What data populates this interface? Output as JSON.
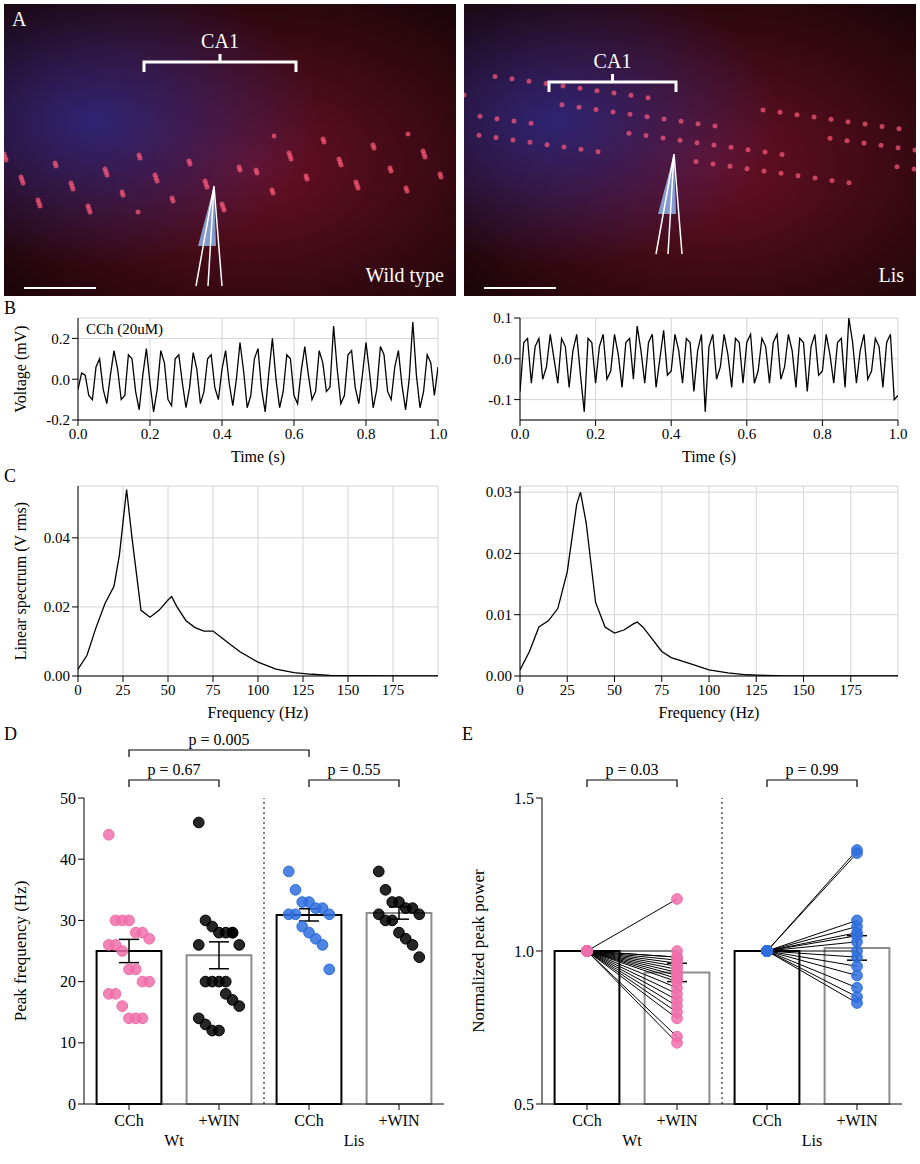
{
  "panel_labels": [
    "A",
    "B",
    "C",
    "D",
    "E"
  ],
  "images": [
    {
      "region": "CA1",
      "label": "Wild type"
    },
    {
      "region": "CA1",
      "label": "Lis"
    }
  ],
  "chart_data": [
    {
      "type": "line",
      "x": [
        0,
        0.01,
        0.02,
        0.03,
        0.04,
        0.05,
        0.06,
        0.07,
        0.08,
        0.09,
        0.1,
        0.11,
        0.12,
        0.13,
        0.14,
        0.15,
        0.16,
        0.17,
        0.18,
        0.19,
        0.2,
        0.21,
        0.22,
        0.23,
        0.24,
        0.25,
        0.26,
        0.27,
        0.28,
        0.29,
        0.3,
        0.31,
        0.32,
        0.33,
        0.34,
        0.35,
        0.36,
        0.37,
        0.38,
        0.39,
        0.4,
        0.41,
        0.42,
        0.43,
        0.44,
        0.45,
        0.46,
        0.47,
        0.48,
        0.49,
        0.5,
        0.51,
        0.52,
        0.53,
        0.54,
        0.55,
        0.56,
        0.57,
        0.58,
        0.59,
        0.6,
        0.61,
        0.62,
        0.63,
        0.64,
        0.65,
        0.66,
        0.67,
        0.68,
        0.69,
        0.7,
        0.71,
        0.72,
        0.73,
        0.74,
        0.75,
        0.76,
        0.77,
        0.78,
        0.79,
        0.8,
        0.81,
        0.82,
        0.83,
        0.84,
        0.85,
        0.86,
        0.87,
        0.88,
        0.89,
        0.9,
        0.91,
        0.92,
        0.93,
        0.94,
        0.95,
        0.96,
        0.97,
        0.98,
        0.99,
        1
      ],
      "values": [
        -0.05,
        0.03,
        0.02,
        -0.08,
        -0.1,
        0.06,
        0.1,
        -0.05,
        -0.12,
        0.02,
        0.14,
        0.05,
        -0.1,
        -0.08,
        0.12,
        0.1,
        -0.06,
        -0.15,
        0.02,
        0.15,
        -0.02,
        -0.16,
        -0.05,
        0.14,
        0.08,
        -0.1,
        -0.13,
        0.1,
        0.12,
        -0.02,
        -0.14,
        -0.04,
        0.13,
        0.05,
        -0.12,
        -0.06,
        0.1,
        0.12,
        -0.04,
        -0.1,
        0.05,
        0.14,
        -0.02,
        -0.13,
        0.0,
        0.18,
        0.04,
        -0.14,
        -0.08,
        0.1,
        0.15,
        -0.05,
        -0.16,
        0.03,
        0.2,
        0.0,
        -0.14,
        -0.06,
        0.12,
        0.1,
        -0.08,
        -0.12,
        0.04,
        0.16,
        0.02,
        -0.1,
        -0.06,
        0.14,
        0.08,
        -0.06,
        -0.04,
        0.26,
        0.05,
        -0.12,
        -0.08,
        0.12,
        0.14,
        -0.04,
        -0.12,
        0.02,
        0.18,
        0.03,
        -0.14,
        -0.05,
        0.16,
        0.12,
        -0.06,
        -0.1,
        0.06,
        0.14,
        -0.03,
        -0.15,
        0.0,
        0.28,
        0.02,
        -0.14,
        -0.06,
        0.12,
        0.08,
        -0.08,
        0.06
      ],
      "color": "#000000",
      "xlim": [
        0,
        1
      ],
      "xticks": [
        {
          "value": 0,
          "label": "0.0"
        },
        0.2,
        0.4,
        0.6,
        0.8,
        {
          "value": 1,
          "label": "1.0"
        }
      ],
      "ylim": [
        -0.2,
        0.3
      ],
      "yticks": [
        -0.2,
        {
          "value": 0,
          "label": "0.0"
        },
        0.2
      ],
      "xlabel": "Time (s)",
      "ylabel": "Voltage (mV)",
      "annotations": [
        "CCh (20uM)"
      ],
      "grid": true
    },
    {
      "type": "line",
      "x": [
        0,
        0.01,
        0.02,
        0.03,
        0.04,
        0.05,
        0.06,
        0.07,
        0.08,
        0.09,
        0.1,
        0.11,
        0.12,
        0.13,
        0.14,
        0.15,
        0.16,
        0.17,
        0.18,
        0.19,
        0.2,
        0.21,
        0.22,
        0.23,
        0.24,
        0.25,
        0.26,
        0.27,
        0.28,
        0.29,
        0.3,
        0.31,
        0.32,
        0.33,
        0.34,
        0.35,
        0.36,
        0.37,
        0.38,
        0.39,
        0.4,
        0.41,
        0.42,
        0.43,
        0.44,
        0.45,
        0.46,
        0.47,
        0.48,
        0.49,
        0.5,
        0.51,
        0.52,
        0.53,
        0.54,
        0.55,
        0.56,
        0.57,
        0.58,
        0.59,
        0.6,
        0.61,
        0.62,
        0.63,
        0.64,
        0.65,
        0.66,
        0.67,
        0.68,
        0.69,
        0.7,
        0.71,
        0.72,
        0.73,
        0.74,
        0.75,
        0.76,
        0.77,
        0.78,
        0.79,
        0.8,
        0.81,
        0.82,
        0.83,
        0.84,
        0.85,
        0.86,
        0.87,
        0.88,
        0.89,
        0.9,
        0.91,
        0.92,
        0.93,
        0.94,
        0.95,
        0.96,
        0.97,
        0.98,
        0.99,
        1
      ],
      "values": [
        -0.08,
        0.04,
        0.05,
        -0.06,
        0.03,
        0.05,
        -0.05,
        -0.02,
        0.06,
        0.0,
        -0.06,
        0.05,
        0.03,
        -0.07,
        0.02,
        0.06,
        -0.04,
        -0.13,
        0.05,
        0.04,
        -0.06,
        0.03,
        0.06,
        -0.05,
        -0.03,
        0.06,
        0.01,
        -0.07,
        0.04,
        0.05,
        -0.05,
        0.08,
        0.02,
        -0.06,
        0.04,
        0.06,
        -0.07,
        0.0,
        0.07,
        -0.04,
        -0.03,
        0.06,
        0.02,
        -0.06,
        0.05,
        0.04,
        -0.08,
        0.02,
        0.06,
        -0.13,
        0.03,
        0.06,
        -0.05,
        -0.02,
        0.06,
        0.01,
        -0.07,
        0.05,
        0.04,
        -0.06,
        0.04,
        0.06,
        -0.06,
        -0.03,
        0.05,
        0.03,
        -0.06,
        0.04,
        0.06,
        -0.05,
        -0.02,
        0.06,
        0.02,
        -0.07,
        0.05,
        0.04,
        -0.08,
        0.03,
        0.06,
        -0.04,
        -0.03,
        0.06,
        0.01,
        -0.06,
        0.04,
        0.05,
        -0.07,
        0.1,
        0.04,
        -0.06,
        0.02,
        0.06,
        -0.05,
        -0.03,
        0.05,
        0.03,
        -0.07,
        0.04,
        0.06,
        -0.1,
        -0.09
      ],
      "color": "#000000",
      "xlim": [
        0,
        1
      ],
      "xticks": [
        {
          "value": 0,
          "label": "0.0"
        },
        0.2,
        0.4,
        0.6,
        0.8,
        {
          "value": 1,
          "label": "1.0"
        }
      ],
      "ylim": [
        -0.15,
        0.1
      ],
      "yticks": [
        -0.1,
        {
          "value": 0,
          "label": "0.0"
        },
        0.1
      ],
      "xlabel": "Time (s)",
      "grid": true
    },
    {
      "type": "line",
      "x": [
        0,
        5,
        10,
        15,
        20,
        23,
        27,
        30,
        35,
        40,
        45,
        50,
        52,
        55,
        60,
        65,
        70,
        75,
        80,
        85,
        90,
        100,
        110,
        120,
        130,
        140,
        150,
        175,
        200
      ],
      "values": [
        0.002,
        0.006,
        0.014,
        0.021,
        0.026,
        0.035,
        0.054,
        0.04,
        0.019,
        0.017,
        0.019,
        0.022,
        0.023,
        0.02,
        0.016,
        0.014,
        0.013,
        0.013,
        0.011,
        0.009,
        0.007,
        0.004,
        0.002,
        0.001,
        0.0005,
        0.0002,
        0.0001,
        0,
        0
      ],
      "color": "#000000",
      "xlim": [
        0,
        200
      ],
      "xticks": [
        0,
        25,
        50,
        75,
        100,
        125,
        150,
        175
      ],
      "ylim": [
        0,
        0.055
      ],
      "yticks": [
        {
          "value": 0,
          "label": "0.00"
        },
        0.02,
        0.04
      ],
      "xlabel": "Frequency (Hz)",
      "ylabel": "Linear spectrum (V rms)",
      "grid": true
    },
    {
      "type": "line",
      "x": [
        0,
        5,
        10,
        15,
        20,
        25,
        30,
        32,
        35,
        40,
        45,
        50,
        55,
        60,
        62,
        65,
        70,
        75,
        80,
        85,
        90,
        100,
        110,
        120,
        130,
        140,
        150,
        175,
        200
      ],
      "values": [
        0.001,
        0.004,
        0.008,
        0.009,
        0.011,
        0.017,
        0.028,
        0.03,
        0.025,
        0.012,
        0.008,
        0.007,
        0.0075,
        0.0085,
        0.0088,
        0.008,
        0.006,
        0.004,
        0.003,
        0.0025,
        0.002,
        0.001,
        0.0005,
        0.0002,
        0.0001,
        0,
        0,
        0,
        0
      ],
      "color": "#000000",
      "xlim": [
        0,
        200
      ],
      "xticks": [
        0,
        25,
        50,
        75,
        100,
        125,
        150,
        175
      ],
      "ylim": [
        0,
        0.031
      ],
      "yticks": [
        {
          "value": 0,
          "label": "0.00"
        },
        0.01,
        0.02,
        0.03
      ],
      "xlabel": "Frequency (Hz)",
      "grid": true
    },
    {
      "type": "bar",
      "categories": [
        "CCh",
        "+WIN",
        "CCh",
        "+WIN"
      ],
      "groups": [
        "Wt",
        "Lis"
      ],
      "values": [
        25.0,
        24.3,
        30.9,
        31.2
      ],
      "errors": [
        1.9,
        2.2,
        1.0,
        1.0
      ],
      "colors": [
        "#000000",
        "#8c8c8c",
        "#000000",
        "#8c8c8c"
      ],
      "points": [
        {
          "color": "#f06eaa",
          "values": [
            44,
            30,
            30,
            30,
            28,
            28,
            27,
            26,
            26,
            25,
            22,
            22,
            20,
            20,
            18,
            18,
            16,
            14,
            14,
            14
          ]
        },
        {
          "color": "#000000",
          "values": [
            46,
            30,
            29,
            28,
            28,
            28,
            26,
            26,
            20,
            20,
            20,
            18,
            17,
            16,
            14,
            13,
            12,
            12,
            20,
            28
          ]
        },
        {
          "color": "#2f6fde",
          "values": [
            38,
            35,
            33,
            33,
            32,
            32,
            31,
            31,
            31,
            29,
            28,
            27,
            26,
            22
          ]
        },
        {
          "color": "#000000",
          "values": [
            38,
            35,
            33,
            33,
            32,
            32,
            31,
            31,
            30,
            30,
            28,
            27,
            26,
            24
          ]
        }
      ],
      "ylim": [
        0,
        50
      ],
      "yticks": [
        0,
        10,
        20,
        30,
        40,
        50
      ],
      "ylabel": "Peak frequency (Hz)",
      "annotations": [
        "p = 0.67",
        "p = 0.005",
        "p = 0.55"
      ]
    },
    {
      "type": "paired",
      "categories": [
        "CCh",
        "+WIN",
        "CCh",
        "+WIN"
      ],
      "groups": [
        "Wt",
        "Lis"
      ],
      "values": [
        1.0,
        0.93,
        1.0,
        1.01
      ],
      "errors": [
        0,
        0.03,
        0,
        0.04
      ],
      "colors": [
        "#000000",
        "#8c8c8c",
        "#000000",
        "#8c8c8c"
      ],
      "points": [
        {
          "color": "#f06eaa",
          "values": [
            1,
            1,
            1,
            1,
            1,
            1,
            1,
            1,
            1,
            1,
            1,
            1,
            1,
            1,
            1,
            1,
            1,
            1,
            1,
            1
          ]
        },
        {
          "color": "#f06eaa",
          "values": [
            1.17,
            1.0,
            0.98,
            0.97,
            0.96,
            0.95,
            0.94,
            0.93,
            0.92,
            0.91,
            0.9,
            0.88,
            0.86,
            0.84,
            0.82,
            0.8,
            0.78,
            0.72,
            0.7,
            0.98
          ]
        },
        {
          "color": "#2f6fde",
          "values": [
            1,
            1,
            1,
            1,
            1,
            1,
            1,
            1,
            1,
            1,
            1,
            1,
            1,
            1
          ]
        },
        {
          "color": "#2f6fde",
          "values": [
            1.33,
            1.32,
            1.1,
            1.08,
            1.06,
            1.05,
            1.03,
            1.0,
            0.98,
            0.95,
            0.92,
            0.88,
            0.85,
            0.83
          ]
        }
      ],
      "ylim": [
        0.5,
        1.5
      ],
      "yticks": [
        0.5,
        {
          "value": 1,
          "label": "1.0"
        },
        1.5
      ],
      "ylabel": "Normalized peak power",
      "annotations": [
        "p = 0.03",
        "p = 0.99"
      ]
    }
  ]
}
